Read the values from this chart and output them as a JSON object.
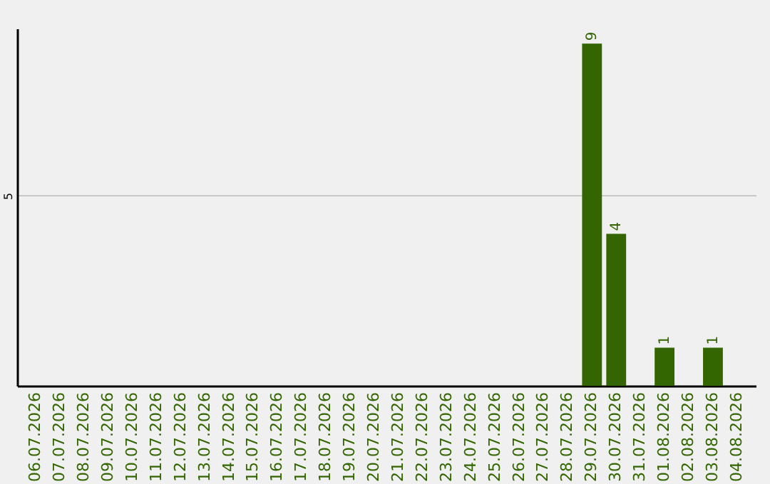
{
  "chart_data": {
    "type": "bar",
    "categories": [
      "06.07.2026",
      "07.07.2026",
      "08.07.2026",
      "09.07.2026",
      "10.07.2026",
      "11.07.2026",
      "12.07.2026",
      "13.07.2026",
      "14.07.2026",
      "15.07.2026",
      "16.07.2026",
      "17.07.2026",
      "18.07.2026",
      "19.07.2026",
      "20.07.2026",
      "21.07.2026",
      "22.07.2026",
      "23.07.2026",
      "24.07.2026",
      "25.07.2026",
      "26.07.2026",
      "27.07.2026",
      "28.07.2026",
      "29.07.2026",
      "30.07.2026",
      "31.07.2026",
      "01.08.2026",
      "02.08.2026",
      "03.08.2026",
      "04.08.2026"
    ],
    "values": [
      null,
      null,
      null,
      null,
      null,
      null,
      null,
      null,
      null,
      null,
      null,
      null,
      null,
      null,
      null,
      null,
      null,
      null,
      null,
      null,
      null,
      null,
      null,
      9,
      4,
      null,
      1,
      null,
      1,
      null
    ],
    "data_labels": true,
    "color": "#336600",
    "ylim": [
      0,
      9.4
    ],
    "yticks": [
      5
    ],
    "grid": "y"
  }
}
